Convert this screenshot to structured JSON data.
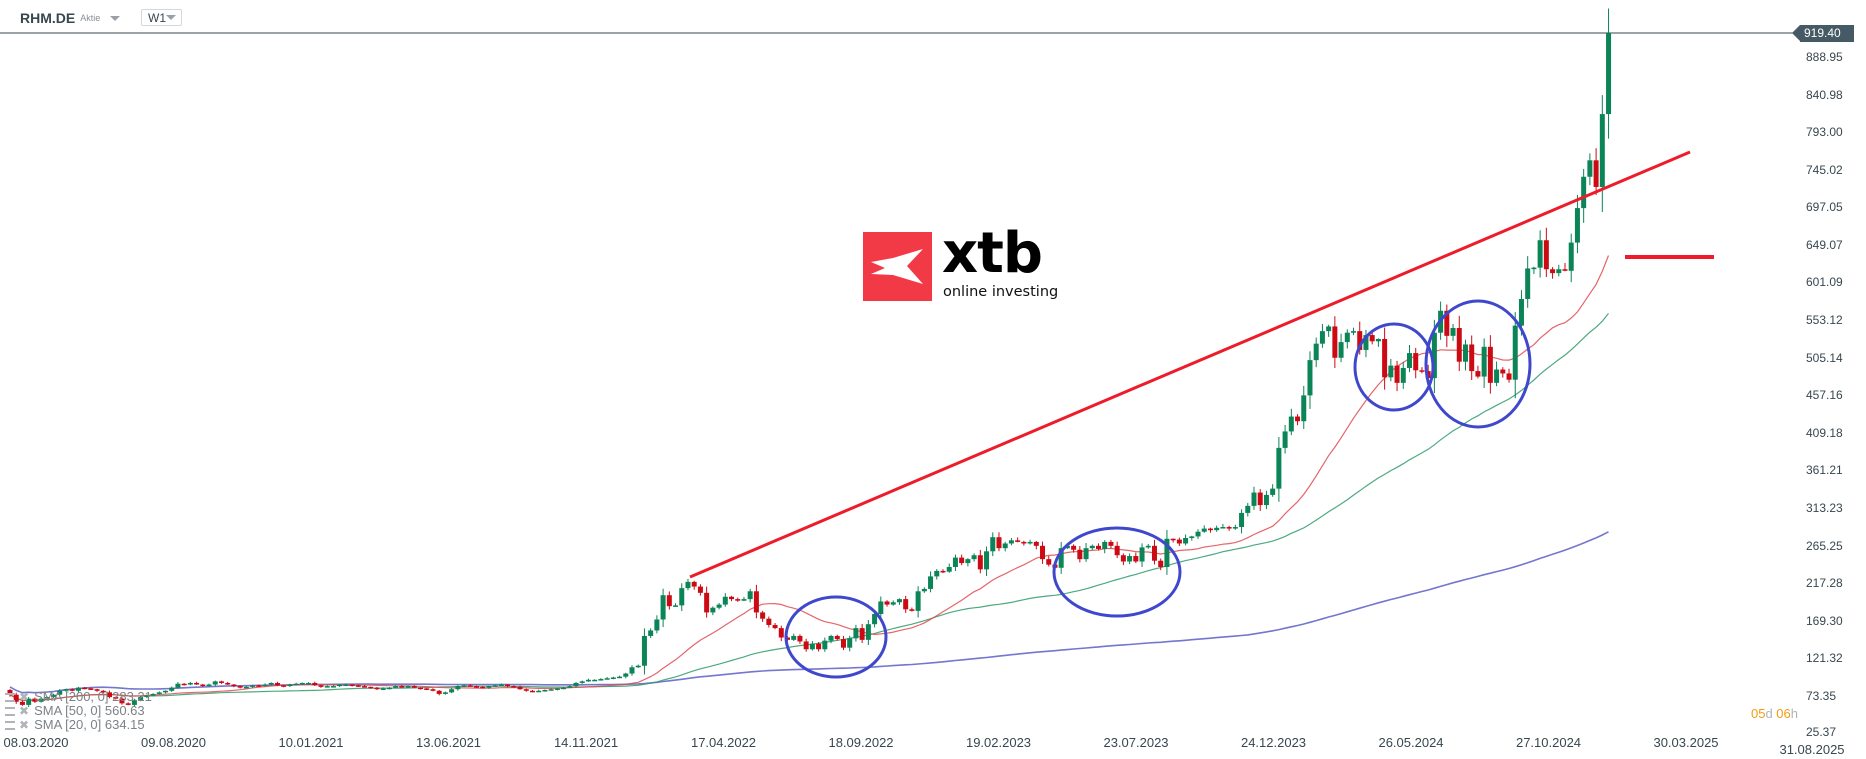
{
  "header": {
    "symbol": "RHM.DE",
    "instrument_type": "Aktie",
    "timeframe": "W1"
  },
  "logo": {
    "text": "xtb",
    "tagline": "online investing",
    "color": "#f23a46"
  },
  "timer": {
    "d_value": "05",
    "d_unit": "d",
    "h_value": "06",
    "h_unit": "h"
  },
  "legend": [
    {
      "label": "SMA [200, 0] 283.21",
      "color": "#5a5fc4"
    },
    {
      "label": "SMA [50, 0] 560.63",
      "color": "#2e9a6a"
    },
    {
      "label": "SMA [20, 0] 634.15",
      "color": "#e04a4f"
    }
  ],
  "colors": {
    "up": "#0b8457",
    "down": "#cc0a14",
    "trendline": "#ee1c2a",
    "annotation": "#3f48cc"
  },
  "chart_data": {
    "type": "candlestick",
    "symbol": "RHM.DE",
    "interval": "W1",
    "current_price": "919.40",
    "y_ticks": [
      "888.95",
      "840.98",
      "793.00",
      "745.02",
      "697.05",
      "649.07",
      "601.09",
      "553.12",
      "505.14",
      "457.16",
      "409.18",
      "361.21",
      "313.23",
      "265.25",
      "217.28",
      "169.30",
      "121.32",
      "73.35",
      "25.37"
    ],
    "ylim": [
      25.37,
      919.4
    ],
    "x_ticks": [
      "08.03.2020",
      "09.08.2020",
      "10.01.2021",
      "13.06.2021",
      "14.11.2021",
      "17.04.2022",
      "18.09.2022",
      "19.02.2023",
      "23.07.2023",
      "24.12.2023",
      "26.05.2024",
      "27.10.2024",
      "30.03.2025",
      "31.08.2025"
    ],
    "weekly_closes": [
      75,
      66,
      62,
      70,
      66,
      70,
      72,
      75,
      80,
      82,
      80,
      84,
      83,
      82,
      80,
      78,
      72,
      70,
      64,
      62,
      68,
      72,
      74,
      76,
      78,
      80,
      84,
      89,
      88,
      90,
      88,
      86,
      88,
      92,
      90,
      88,
      86,
      84,
      85,
      87,
      86,
      88,
      90,
      87,
      86,
      88,
      89,
      90,
      90,
      87,
      85,
      86,
      86,
      88,
      88,
      87,
      86,
      85,
      84,
      82,
      83,
      84,
      86,
      85,
      86,
      84,
      83,
      82,
      80,
      76,
      78,
      82,
      86,
      87,
      86,
      85,
      84,
      86,
      87,
      88,
      86,
      85,
      82,
      80,
      79,
      80,
      81,
      82,
      83,
      84,
      86,
      90,
      92,
      94,
      94,
      95,
      96,
      97,
      98,
      102,
      110,
      112,
      150,
      157,
      171,
      202,
      188,
      189,
      211,
      219,
      213,
      205,
      180,
      186,
      190,
      200,
      197,
      195,
      197,
      207,
      180,
      172,
      164,
      160,
      148,
      145,
      150,
      143,
      133,
      140,
      133,
      144,
      150,
      146,
      135,
      147,
      160,
      145,
      165,
      178,
      194,
      190,
      193,
      197,
      184,
      182,
      207,
      210,
      226,
      233,
      232,
      238,
      250,
      243,
      248,
      253,
      235,
      258,
      276,
      262,
      268,
      272,
      270,
      268,
      270,
      265,
      248,
      241,
      237,
      262,
      265,
      260,
      248,
      262,
      265,
      261,
      270,
      265,
      253,
      245,
      252,
      245,
      263,
      265,
      246,
      238,
      274,
      273,
      268,
      275,
      277,
      283,
      287,
      285,
      288,
      289,
      287,
      289,
      307,
      316,
      333,
      317,
      330,
      338,
      390,
      411,
      430,
      424,
      457,
      502,
      523,
      539,
      545,
      505,
      525,
      537,
      539,
      515,
      534,
      526,
      529,
      480,
      495,
      473,
      492,
      511,
      489,
      488,
      479,
      537,
      565,
      533,
      543,
      500,
      522,
      488,
      481,
      519,
      473,
      490,
      485,
      477,
      546,
      580,
      619,
      620,
      655,
      618,
      613,
      618,
      616,
      652,
      696,
      736,
      757,
      723,
      816,
      919.4
    ],
    "indicators": [
      {
        "name": "SMA [200, 0]",
        "period": 200,
        "last": 283.21
      },
      {
        "name": "SMA [50, 0]",
        "period": 50,
        "last": 560.63
      },
      {
        "name": "SMA [20, 0]",
        "period": 20,
        "last": 634.15
      }
    ],
    "grid": false
  }
}
